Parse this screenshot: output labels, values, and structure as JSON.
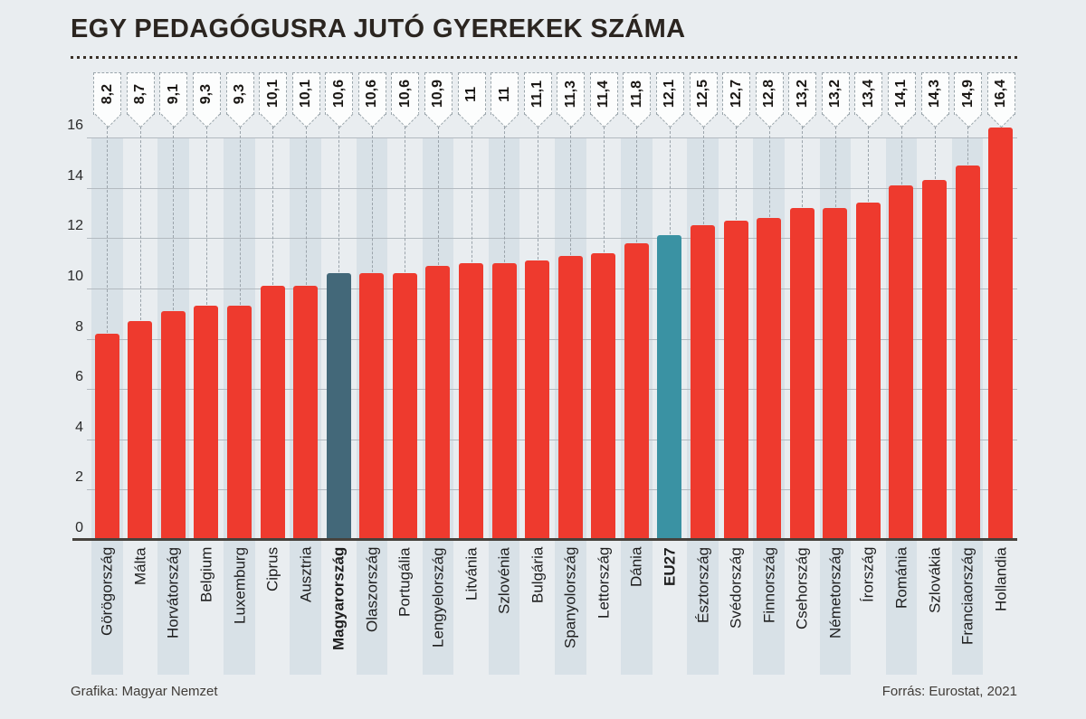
{
  "title": "EGY PEDAGÓGUSRA JUTÓ GYEREKEK SZÁMA",
  "footer": {
    "left": "Grafika: Magyar Nemzet",
    "right": "Forrás: Eurostat, 2021"
  },
  "colors": {
    "background": "#e9edf0",
    "column_band": "#d8e1e7",
    "bar_default": "#ee3a2e",
    "bar_hungary": "#436879",
    "bar_eu27": "#3a92a3",
    "gridline": "#b3bac0",
    "baseline": "#46423d"
  },
  "chart_data": {
    "type": "bar",
    "title": "EGY PEDAGÓGUSRA JUTÓ GYEREKEK SZÁMA",
    "xlabel": "",
    "ylabel": "",
    "ylim": [
      0,
      16
    ],
    "yticks": [
      0,
      2,
      4,
      6,
      8,
      10,
      12,
      14,
      16
    ],
    "grid": true,
    "legend": false,
    "categories": [
      "Görögország",
      "Málta",
      "Horvátország",
      "Belgium",
      "Luxemburg",
      "Ciprus",
      "Ausztria",
      "Magyarország",
      "Olaszország",
      "Portugália",
      "Lengyelország",
      "Litvánia",
      "Szlovénia",
      "Bulgária",
      "Spanyolország",
      "Lettország",
      "Dánia",
      "EU27",
      "Észtország",
      "Svédország",
      "Finnország",
      "Csehország",
      "Németország",
      "Írország",
      "Románia",
      "Szlovákia",
      "Franciaország",
      "Hollandia"
    ],
    "values": [
      8.2,
      8.7,
      9.1,
      9.3,
      9.3,
      10.1,
      10.1,
      10.6,
      10.6,
      10.6,
      10.9,
      11,
      11,
      11.1,
      11.3,
      11.4,
      11.8,
      12.1,
      12.5,
      12.7,
      12.8,
      13.2,
      13.2,
      13.4,
      14.1,
      14.3,
      14.9,
      16.4
    ],
    "value_labels": [
      "8,2",
      "8,7",
      "9,1",
      "9,3",
      "9,3",
      "10,1",
      "10,1",
      "10,6",
      "10,6",
      "10,6",
      "10,9",
      "11",
      "11",
      "11,1",
      "11,3",
      "11,4",
      "11,8",
      "12,1",
      "12,5",
      "12,7",
      "12,8",
      "13,2",
      "13,2",
      "13,4",
      "14,1",
      "14,3",
      "14,9",
      "16,4"
    ],
    "bar_color": "#ee3a2e",
    "highlights": [
      {
        "category": "Magyarország",
        "color": "#436879"
      },
      {
        "category": "EU27",
        "color": "#3a92a3"
      }
    ],
    "bold_categories": [
      "Magyarország",
      "EU27"
    ]
  }
}
